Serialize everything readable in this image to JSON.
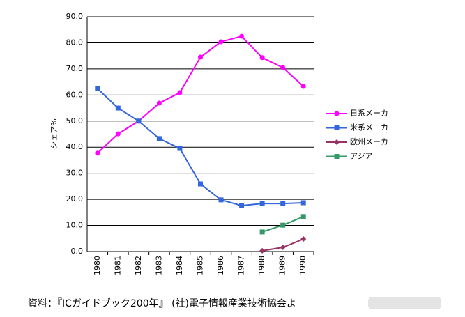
{
  "chart_data": {
    "type": "line",
    "y_label": "シェア%",
    "x": [
      1980,
      1981,
      1982,
      1983,
      1984,
      1985,
      1986,
      1987,
      1988,
      1989,
      1990
    ],
    "xlim": [
      1979.5,
      1990.5
    ],
    "xticks": [
      1980,
      1981,
      1982,
      1983,
      1984,
      1985,
      1986,
      1987,
      1988,
      1989,
      1990
    ],
    "ylim": [
      0,
      90
    ],
    "yticks": [
      {
        "value": 0,
        "label": "0.0"
      },
      {
        "value": 10,
        "label": "10.0"
      },
      {
        "value": 20,
        "label": "20.0"
      },
      {
        "value": 30,
        "label": "30.0"
      },
      {
        "value": 40,
        "label": "40.0"
      },
      {
        "value": 50,
        "label": "50.0"
      },
      {
        "value": 60,
        "label": "60.0"
      },
      {
        "value": 70,
        "label": "70.0"
      },
      {
        "value": 80,
        "label": "80.0"
      },
      {
        "value": 90,
        "label": "90.0"
      }
    ],
    "grid": true,
    "legend": "right",
    "series": [
      {
        "name": "日系メーカ",
        "color": "#ff00ff",
        "marker": "circle",
        "values": [
          37.7,
          45.1,
          50,
          56.9,
          60.9,
          74.5,
          80.4,
          82.5,
          74.3,
          70.5,
          63.3
        ]
      },
      {
        "name": "米系メーカ",
        "color": "#3366dd",
        "marker": "square",
        "values": [
          62.5,
          55,
          50,
          43.3,
          39.5,
          25.9,
          19.8,
          17.6,
          18.4,
          18.4,
          18.7
        ]
      },
      {
        "name": "欧州メーカ",
        "color": "#993366",
        "marker": "diamond",
        "values": [
          null,
          null,
          null,
          null,
          null,
          null,
          null,
          null,
          0.3,
          1.6,
          4.8
        ]
      },
      {
        "name": "アジア",
        "color": "#339966",
        "marker": "square",
        "values": [
          null,
          null,
          null,
          null,
          null,
          null,
          null,
          null,
          7.5,
          10.1,
          13.4
        ]
      }
    ]
  },
  "source": "資料：『ICガイドブック200年』 (社)電子情報産業技術協会よ"
}
